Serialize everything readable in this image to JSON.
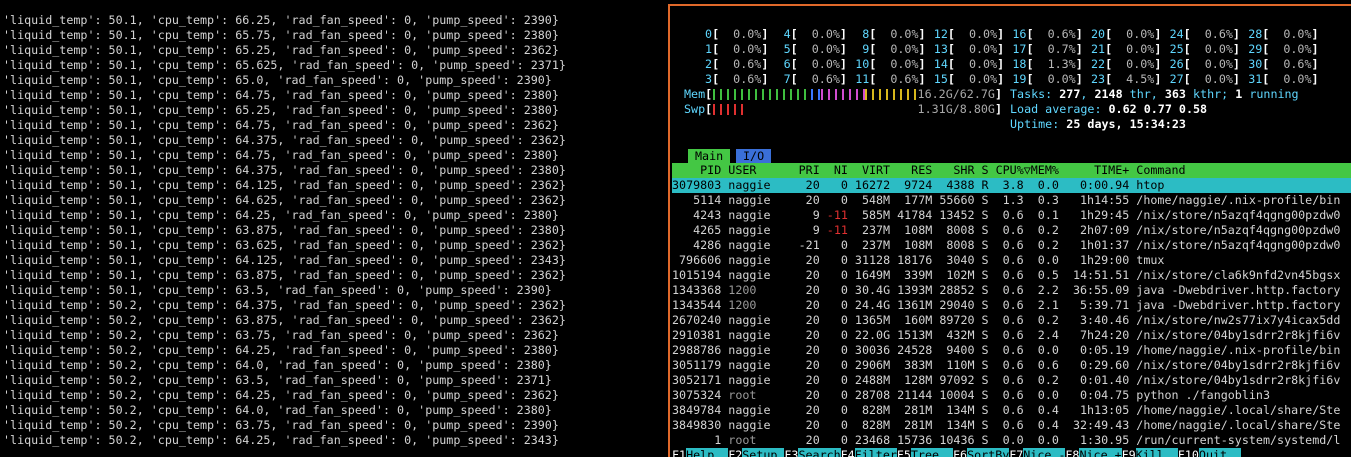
{
  "left_pane": {
    "lines": [
      "'liquid_temp': 50.1, 'cpu_temp': 66.25, 'rad_fan_speed': 0, 'pump_speed': 2390}",
      "'liquid_temp': 50.1, 'cpu_temp': 65.75, 'rad_fan_speed': 0, 'pump_speed': 2380}",
      "'liquid_temp': 50.1, 'cpu_temp': 65.25, 'rad_fan_speed': 0, 'pump_speed': 2362}",
      "'liquid_temp': 50.1, 'cpu_temp': 65.625, 'rad_fan_speed': 0, 'pump_speed': 2371}",
      "'liquid_temp': 50.1, 'cpu_temp': 65.0, 'rad_fan_speed': 0, 'pump_speed': 2390}",
      "'liquid_temp': 50.1, 'cpu_temp': 64.75, 'rad_fan_speed': 0, 'pump_speed': 2380}",
      "'liquid_temp': 50.1, 'cpu_temp': 65.25, 'rad_fan_speed': 0, 'pump_speed': 2380}",
      "'liquid_temp': 50.1, 'cpu_temp': 64.75, 'rad_fan_speed': 0, 'pump_speed': 2362}",
      "'liquid_temp': 50.1, 'cpu_temp': 64.375, 'rad_fan_speed': 0, 'pump_speed': 2362}",
      "'liquid_temp': 50.1, 'cpu_temp': 64.75, 'rad_fan_speed': 0, 'pump_speed': 2380}",
      "'liquid_temp': 50.1, 'cpu_temp': 64.375, 'rad_fan_speed': 0, 'pump_speed': 2380}",
      "'liquid_temp': 50.1, 'cpu_temp': 64.125, 'rad_fan_speed': 0, 'pump_speed': 2362}",
      "'liquid_temp': 50.1, 'cpu_temp': 64.625, 'rad_fan_speed': 0, 'pump_speed': 2362}",
      "'liquid_temp': 50.1, 'cpu_temp': 64.25, 'rad_fan_speed': 0, 'pump_speed': 2380}",
      "'liquid_temp': 50.1, 'cpu_temp': 63.875, 'rad_fan_speed': 0, 'pump_speed': 2380}",
      "'liquid_temp': 50.1, 'cpu_temp': 63.625, 'rad_fan_speed': 0, 'pump_speed': 2362}",
      "'liquid_temp': 50.1, 'cpu_temp': 64.125, 'rad_fan_speed': 0, 'pump_speed': 2343}",
      "'liquid_temp': 50.1, 'cpu_temp': 63.875, 'rad_fan_speed': 0, 'pump_speed': 2362}",
      "'liquid_temp': 50.1, 'cpu_temp': 63.5, 'rad_fan_speed': 0, 'pump_speed': 2390}",
      "'liquid_temp': 50.2, 'cpu_temp': 64.375, 'rad_fan_speed': 0, 'pump_speed': 2362}",
      "'liquid_temp': 50.2, 'cpu_temp': 63.875, 'rad_fan_speed': 0, 'pump_speed': 2362}",
      "'liquid_temp': 50.2, 'cpu_temp': 63.75, 'rad_fan_speed': 0, 'pump_speed': 2362}",
      "'liquid_temp': 50.2, 'cpu_temp': 64.25, 'rad_fan_speed': 0, 'pump_speed': 2380}",
      "'liquid_temp': 50.2, 'cpu_temp': 64.0, 'rad_fan_speed': 0, 'pump_speed': 2380}",
      "'liquid_temp': 50.2, 'cpu_temp': 63.5, 'rad_fan_speed': 0, 'pump_speed': 2371}",
      "'liquid_temp': 50.2, 'cpu_temp': 64.25, 'rad_fan_speed': 0, 'pump_speed': 2362}",
      "'liquid_temp': 50.2, 'cpu_temp': 64.0, 'rad_fan_speed': 0, 'pump_speed': 2380}",
      "'liquid_temp': 50.2, 'cpu_temp': 63.75, 'rad_fan_speed': 0, 'pump_speed': 2390}",
      "'liquid_temp': 50.2, 'cpu_temp': 64.25, 'rad_fan_speed': 0, 'pump_speed': 2343}"
    ]
  },
  "htop": {
    "cpus": [
      {
        "id": "0",
        "value": "0.0%"
      },
      {
        "id": "1",
        "value": "0.0%"
      },
      {
        "id": "2",
        "value": "0.6%"
      },
      {
        "id": "3",
        "value": "0.6%"
      },
      {
        "id": "4",
        "value": "0.0%"
      },
      {
        "id": "5",
        "value": "0.0%"
      },
      {
        "id": "6",
        "value": "0.0%"
      },
      {
        "id": "7",
        "value": "0.6%"
      },
      {
        "id": "8",
        "value": "0.0%"
      },
      {
        "id": "9",
        "value": "0.0%"
      },
      {
        "id": "10",
        "value": "0.0%"
      },
      {
        "id": "11",
        "value": "0.6%"
      },
      {
        "id": "12",
        "value": "0.0%"
      },
      {
        "id": "13",
        "value": "0.0%"
      },
      {
        "id": "14",
        "value": "0.0%"
      },
      {
        "id": "15",
        "value": "0.0%"
      },
      {
        "id": "16",
        "value": "0.6%"
      },
      {
        "id": "17",
        "value": "0.7%"
      },
      {
        "id": "18",
        "value": "1.3%"
      },
      {
        "id": "19",
        "value": "0.0%"
      },
      {
        "id": "20",
        "value": "0.0%"
      },
      {
        "id": "21",
        "value": "0.0%"
      },
      {
        "id": "22",
        "value": "0.0%"
      },
      {
        "id": "23",
        "value": "4.5%"
      },
      {
        "id": "24",
        "value": "0.6%"
      },
      {
        "id": "25",
        "value": "0.0%"
      },
      {
        "id": "26",
        "value": "0.0%"
      },
      {
        "id": "27",
        "value": "0.0%"
      },
      {
        "id": "28",
        "value": "0.0%"
      },
      {
        "id": "29",
        "value": "0.0%"
      },
      {
        "id": "30",
        "value": "0.6%"
      },
      {
        "id": "31",
        "value": "0.0%"
      }
    ],
    "mem": {
      "label": "Mem",
      "value": "16.2G/62.7G"
    },
    "swp": {
      "label": "Swp",
      "value": "1.31G/8.80G"
    },
    "tasks": [
      "Tasks: ",
      "277",
      ", ",
      "2148",
      " thr, ",
      "363",
      " kthr; ",
      "1",
      " running"
    ],
    "load": [
      "Load average: ",
      "0.62",
      " ",
      "0.77",
      " ",
      "0.58"
    ],
    "uptime": [
      "Uptime: ",
      "25 days, 15:34:23"
    ],
    "tabs": [
      "Main",
      "I/O"
    ],
    "columns": [
      "PID",
      "USER",
      "PRI",
      "NI",
      "VIRT",
      "RES",
      "SHR",
      "S",
      "CPU%",
      "MEM%",
      "TIME+",
      "Command"
    ],
    "sort_indicator": "▽",
    "processes": [
      [
        "3079803",
        "naggie",
        "20",
        "0",
        "16272",
        "9724",
        "4388",
        "R",
        "3.8",
        "0.0",
        "0:00.94",
        "htop"
      ],
      [
        "5114",
        "naggie",
        "20",
        "0",
        "548M",
        "177M",
        "55660",
        "S",
        "1.3",
        "0.3",
        "1h14:55",
        "/home/naggie/.nix-profile/bin"
      ],
      [
        "4243",
        "naggie",
        "9",
        "-11",
        "585M",
        "41784",
        "13452",
        "S",
        "0.6",
        "0.1",
        "1h29:45",
        "/nix/store/n5azqf4qgng00pzdw0"
      ],
      [
        "4265",
        "naggie",
        "9",
        "-11",
        "237M",
        "108M",
        "8008",
        "S",
        "0.6",
        "0.2",
        "2h07:09",
        "/nix/store/n5azqf4qgng00pzdw0"
      ],
      [
        "4286",
        "naggie",
        "-21",
        "0",
        "237M",
        "108M",
        "8008",
        "S",
        "0.6",
        "0.2",
        "1h01:37",
        "/nix/store/n5azqf4qgng00pzdw0"
      ],
      [
        "796606",
        "naggie",
        "20",
        "0",
        "31128",
        "18176",
        "3040",
        "S",
        "0.6",
        "0.0",
        "1h29:00",
        "tmux"
      ],
      [
        "1015194",
        "naggie",
        "20",
        "0",
        "1649M",
        "339M",
        "102M",
        "S",
        "0.6",
        "0.5",
        "14:51.51",
        "/nix/store/cla6k9nfd2vn45bgsx"
      ],
      [
        "1343368",
        "1200",
        "20",
        "0",
        "30.4G",
        "1393M",
        "28852",
        "S",
        "0.6",
        "2.2",
        "36:55.09",
        "java -Dwebdriver.http.factory"
      ],
      [
        "1343544",
        "1200",
        "20",
        "0",
        "24.4G",
        "1361M",
        "29040",
        "S",
        "0.6",
        "2.1",
        "5:39.71",
        "java -Dwebdriver.http.factory"
      ],
      [
        "2670240",
        "naggie",
        "20",
        "0",
        "1365M",
        "160M",
        "89720",
        "S",
        "0.6",
        "0.2",
        "3:40.46",
        "/nix/store/nw2s77ix7y4icax5dd"
      ],
      [
        "2910381",
        "naggie",
        "20",
        "0",
        "22.0G",
        "1513M",
        "432M",
        "S",
        "0.6",
        "2.4",
        "7h24:20",
        "/nix/store/04by1sdrr2r8kjfi6v"
      ],
      [
        "2988786",
        "naggie",
        "20",
        "0",
        "30036",
        "24528",
        "9400",
        "S",
        "0.6",
        "0.0",
        "0:05.19",
        "/home/naggie/.nix-profile/bin"
      ],
      [
        "3051179",
        "naggie",
        "20",
        "0",
        "2906M",
        "383M",
        "110M",
        "S",
        "0.6",
        "0.6",
        "0:29.60",
        "/nix/store/04by1sdrr2r8kjfi6v"
      ],
      [
        "3052171",
        "naggie",
        "20",
        "0",
        "2488M",
        "128M",
        "97092",
        "S",
        "0.6",
        "0.2",
        "0:01.40",
        "/nix/store/04by1sdrr2r8kjfi6v"
      ],
      [
        "3075324",
        "root",
        "20",
        "0",
        "28708",
        "21144",
        "10004",
        "S",
        "0.6",
        "0.0",
        "0:04.75",
        "python ./fangoblin3"
      ],
      [
        "3849784",
        "naggie",
        "20",
        "0",
        "828M",
        "281M",
        "134M",
        "S",
        "0.6",
        "0.4",
        "1h13:05",
        "/home/naggie/.local/share/Ste"
      ],
      [
        "3849830",
        "naggie",
        "20",
        "0",
        "828M",
        "281M",
        "134M",
        "S",
        "0.6",
        "0.4",
        "32:49.43",
        "/home/naggie/.local/share/Ste"
      ],
      [
        "1",
        "root",
        "20",
        "0",
        "23468",
        "15736",
        "10436",
        "S",
        "0.0",
        "0.0",
        "1:30.95",
        "/run/current-system/systemd/l"
      ]
    ],
    "footer": [
      {
        "key": "F1",
        "label": "Help"
      },
      {
        "key": "F2",
        "label": "Setup"
      },
      {
        "key": "F3",
        "label": "Search"
      },
      {
        "key": "F4",
        "label": "Filter"
      },
      {
        "key": "F5",
        "label": "Tree"
      },
      {
        "key": "F6",
        "label": "SortBy"
      },
      {
        "key": "F7",
        "label": "Nice -"
      },
      {
        "key": "F8",
        "label": "Nice +"
      },
      {
        "key": "F9",
        "label": "Kill"
      },
      {
        "key": "F10",
        "label": "Quit"
      }
    ]
  }
}
